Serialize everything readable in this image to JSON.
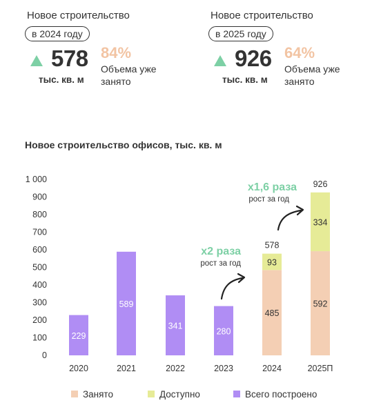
{
  "kpis": [
    {
      "title": "Новое строительство",
      "period": "в 2024 году",
      "value": "578",
      "unit": "тыс. кв. м",
      "percent": "84%",
      "desc": "Объема уже занято"
    },
    {
      "title": "Новое строительство",
      "period": "в 2025 году",
      "value": "926",
      "unit": "тыс. кв. м",
      "percent": "64%",
      "desc": "Объема уже занято"
    }
  ],
  "colors": {
    "occupied": "#f4cfb4",
    "available": "#e6eb97",
    "built": "#b08df4",
    "accent": "#7dd0a5",
    "percent": "#f2c4a3"
  },
  "icons": {
    "kpi_trend": "triangle-up-icon",
    "growth": "curved-arrow-icon"
  },
  "chart_data": {
    "type": "bar",
    "title": "Новое строительство офисов, тыс. кв. м",
    "categories": [
      "2020",
      "2021",
      "2022",
      "2023",
      "2024",
      "2025П"
    ],
    "ylim": [
      0,
      1000
    ],
    "yticks": [
      0,
      100,
      200,
      300,
      400,
      500,
      600,
      700,
      800,
      900,
      1000
    ],
    "ytick_labels": [
      "0",
      "100",
      "200",
      "300",
      "400",
      "500",
      "600",
      "700",
      "800",
      "900",
      "1 000"
    ],
    "grid": false,
    "legend_position": "bottom",
    "series": [
      {
        "name": "Занято",
        "values": [
          null,
          null,
          null,
          null,
          485,
          592
        ]
      },
      {
        "name": "Доступно",
        "values": [
          null,
          null,
          null,
          null,
          93,
          334
        ]
      },
      {
        "name": "Всего построено",
        "values": [
          229,
          589,
          341,
          280,
          null,
          null
        ]
      }
    ],
    "totals": [
      null,
      null,
      null,
      null,
      578,
      926
    ],
    "total_labels": [
      "",
      "",
      "",
      "",
      "578",
      "926"
    ],
    "annotations": [
      {
        "text": "x2 раза",
        "subtext": "рост за год"
      },
      {
        "text": "x1,6 раза",
        "subtext": "рост за год"
      }
    ]
  }
}
